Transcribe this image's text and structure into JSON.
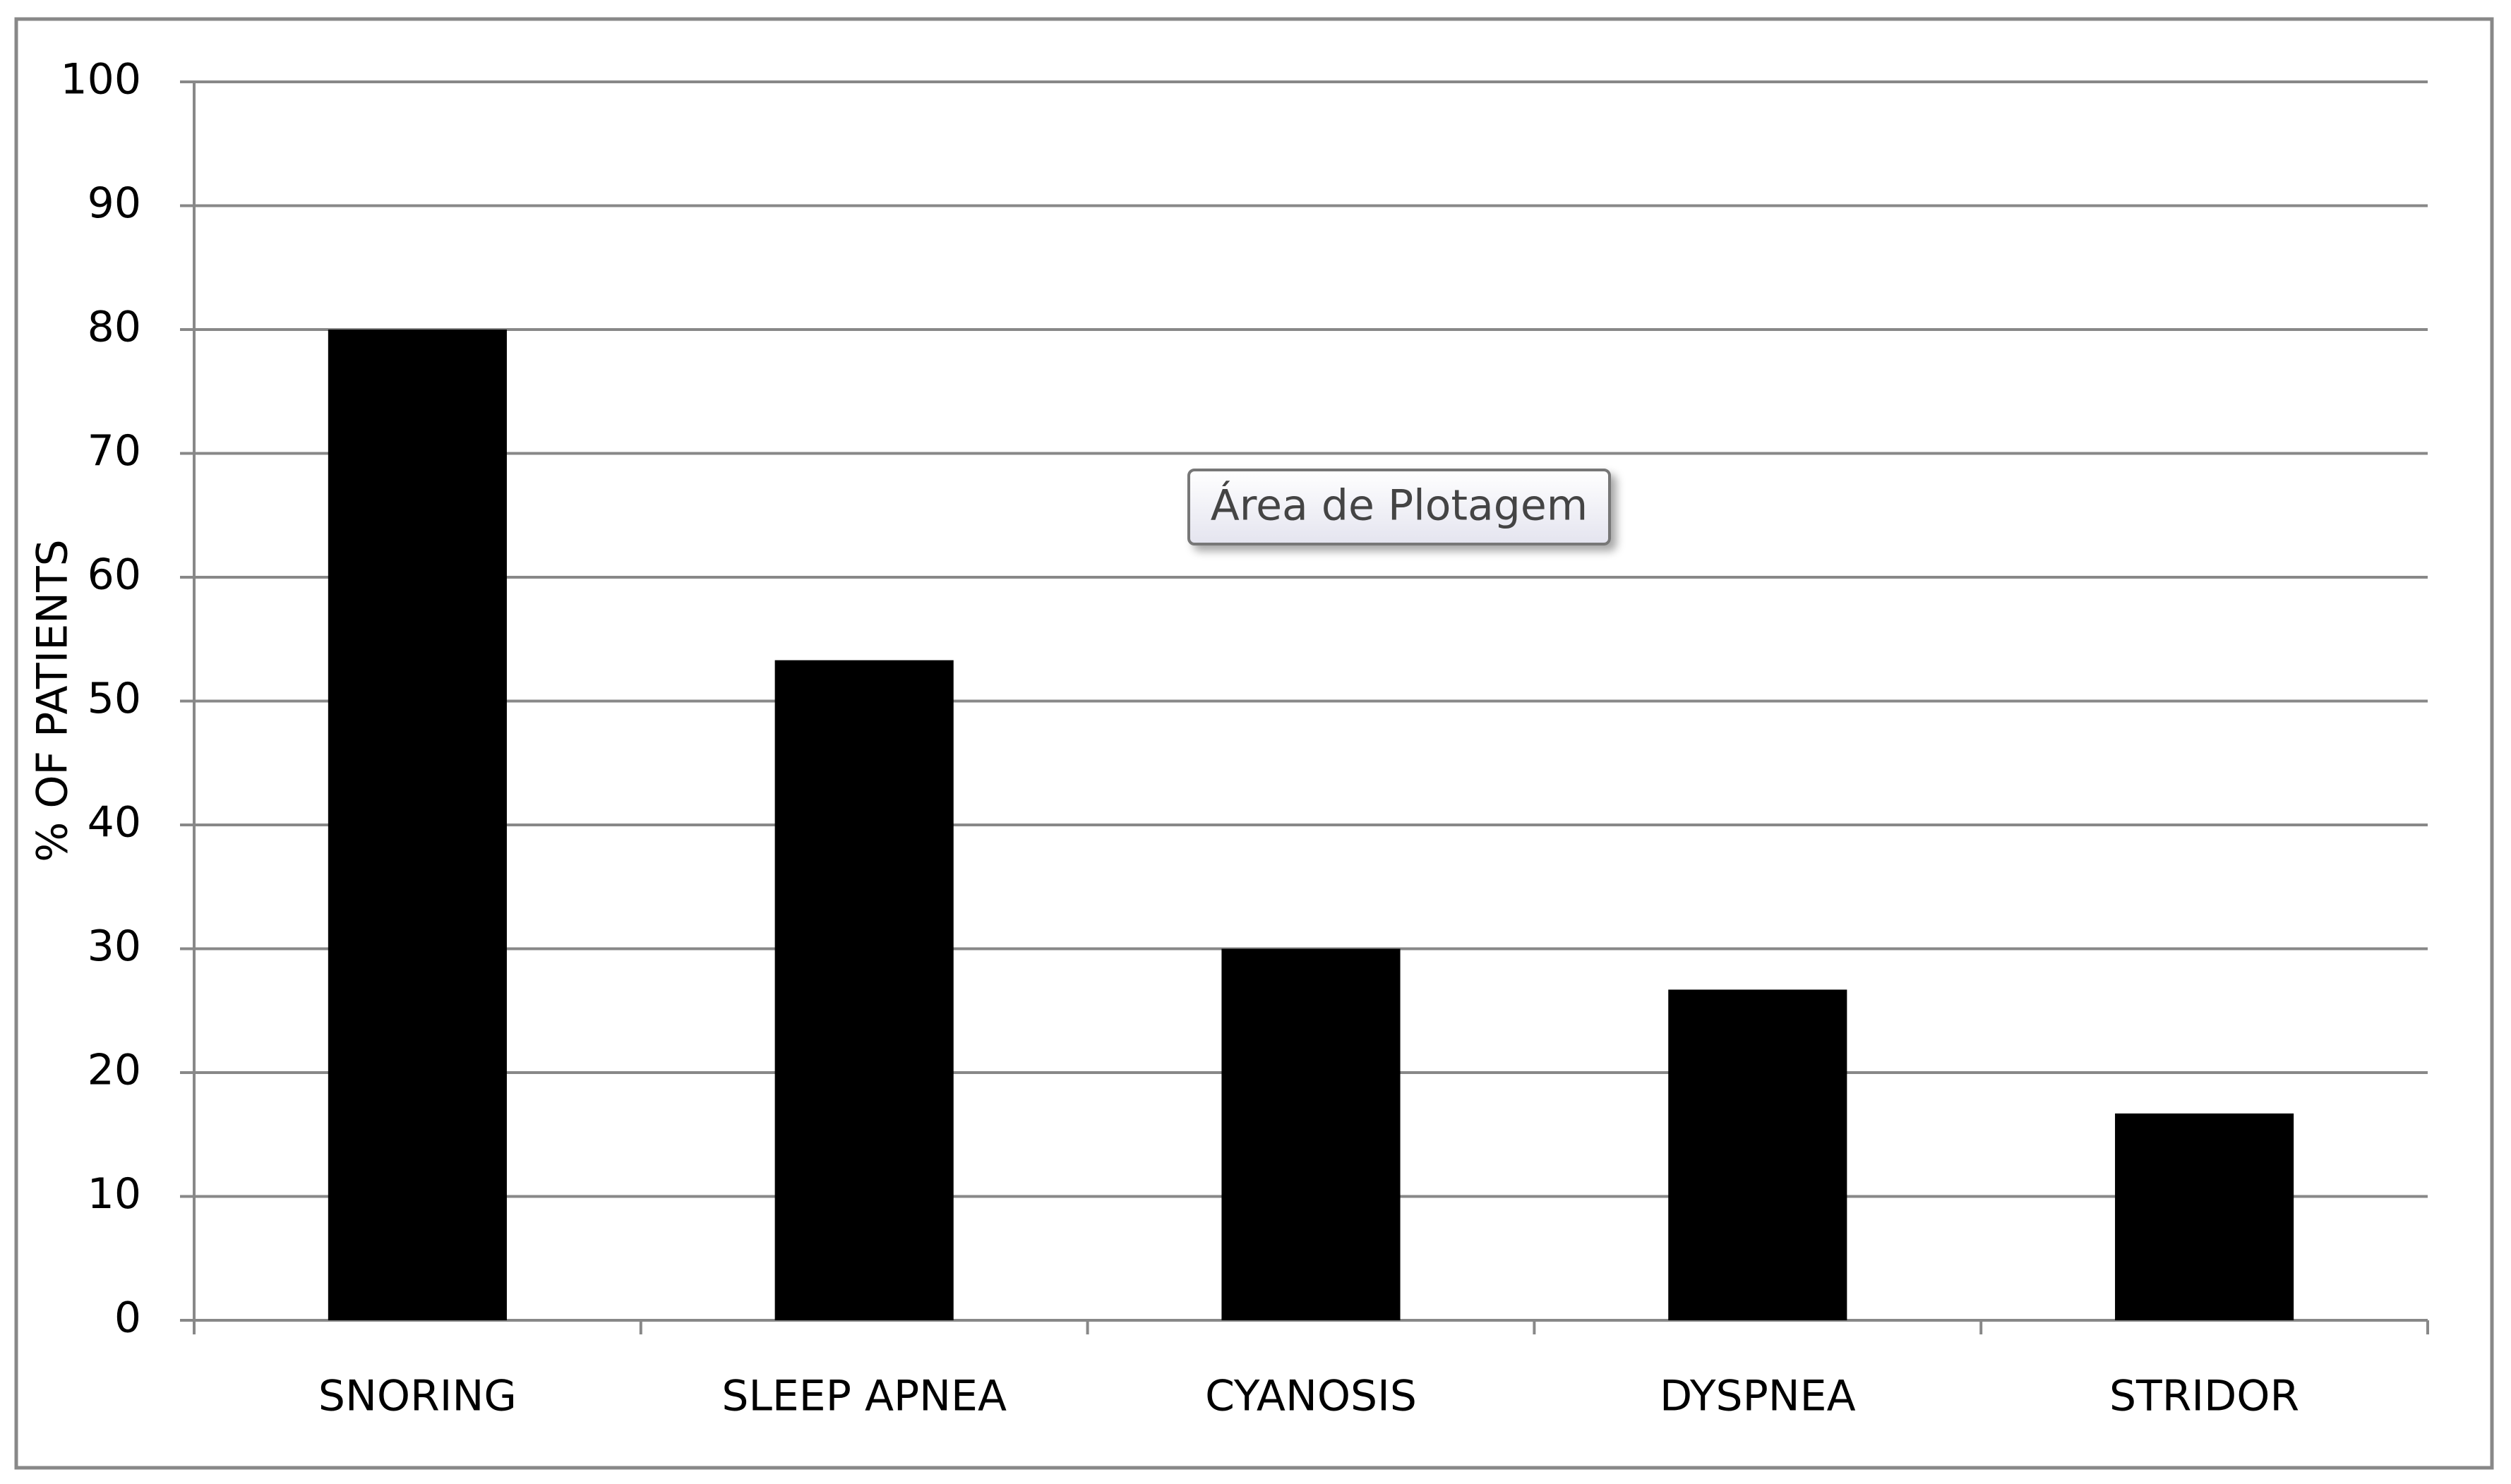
{
  "chart_data": {
    "type": "bar",
    "y_label": "% OF PATIENTS",
    "categories": [
      "SNORING",
      "SLEEP APNEA",
      "CYANOSIS",
      "DYSPNEA",
      "STRIDOR"
    ],
    "values": [
      80,
      53.3,
      30,
      26.7,
      16.7
    ],
    "color": "#000000",
    "ylim": [
      0,
      100
    ],
    "yticks": [
      0,
      10,
      20,
      30,
      40,
      50,
      60,
      70,
      80,
      90,
      100
    ],
    "grid": true,
    "annotation": "Área de Plotagem"
  }
}
